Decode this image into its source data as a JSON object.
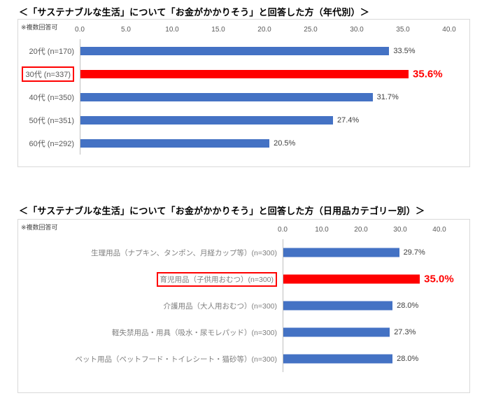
{
  "colors": {
    "bar_blue": "#4472c4",
    "bar_red": "#ff0000",
    "value_text": "#404040",
    "highlight_text": "#ff0000"
  },
  "chart_data": [
    {
      "type": "bar",
      "orientation": "horizontal",
      "title": "＜「サステナブルな生活」について「お金がかかりそう」と回答した方（年代別）＞",
      "note": "※複数回答可",
      "axis_ticks": [
        "0.0",
        "5.0",
        "10.0",
        "15.0",
        "20.0",
        "25.0",
        "30.0",
        "35.0",
        "40.0"
      ],
      "xlim": [
        0,
        40
      ],
      "categories": [
        "20代 (n=170)",
        "30代 (n=337)",
        "40代 (n=350)",
        "50代 (n=351)",
        "60代 (n=292)"
      ],
      "values": [
        33.5,
        35.6,
        31.7,
        27.4,
        20.5
      ],
      "value_labels": [
        "33.5%",
        "35.6%",
        "31.7%",
        "27.4%",
        "20.5%"
      ],
      "highlight_index": 1,
      "legend": "none",
      "grid": "off"
    },
    {
      "type": "bar",
      "orientation": "horizontal",
      "title": "＜「サステナブルな生活」について「お金がかかりそう」と回答した方（日用品カテゴリー別）＞",
      "note": "※複数回答可",
      "axis_ticks": [
        "0.0",
        "10.0",
        "20.0",
        "30.0",
        "40.0"
      ],
      "xlim": [
        0,
        40
      ],
      "categories": [
        "生理用品（ナプキン、タンポン、月経カップ等）(n=300)",
        "育児用品（子供用おむつ）(n=300)",
        "介護用品（大人用おむつ）(n=300)",
        "軽失禁用品・用具（吸水・尿モレパッド）(n=300)",
        "ペット用品（ペットフード・トイレシート・猫砂等）(n=300)"
      ],
      "values": [
        29.7,
        35.0,
        28.0,
        27.3,
        28.0
      ],
      "value_labels": [
        "29.7%",
        "35.0%",
        "28.0%",
        "27.3%",
        "28.0%"
      ],
      "highlight_index": 1,
      "legend": "none",
      "grid": "off"
    }
  ]
}
